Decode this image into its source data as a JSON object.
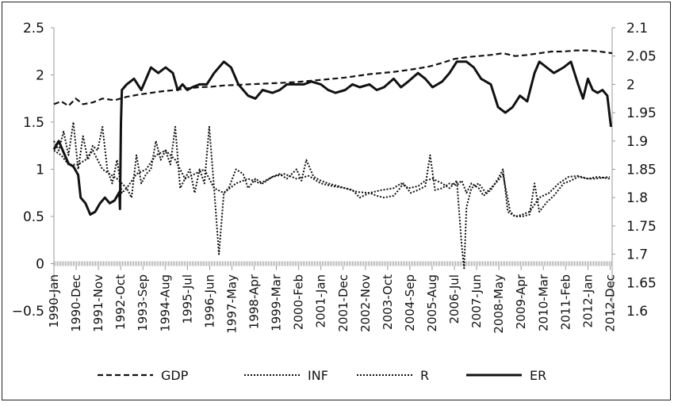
{
  "chart_data": {
    "type": "line",
    "title": "",
    "xlabel": "",
    "ylabel": "",
    "y_left": {
      "min": -0.5,
      "max": 2.5,
      "ticks": [
        -0.5,
        0,
        0.5,
        1,
        1.5,
        2,
        2.5
      ],
      "tick_labels": [
        "−0.5",
        "0",
        "0.5",
        "1",
        "1.5",
        "2",
        "2.5"
      ]
    },
    "y_right": {
      "min": 1.6,
      "max": 2.1,
      "ticks": [
        1.6,
        1.65,
        1.7,
        1.75,
        1.8,
        1.85,
        1.9,
        1.95,
        2,
        2.05,
        2.1
      ],
      "tick_labels": [
        "1.6",
        "1.65",
        "1.7",
        "1.75",
        "1.8",
        "1.85",
        "1.9",
        "1.95",
        "2",
        "2.05",
        "2.1"
      ]
    },
    "x_range": [
      1990.0,
      2013.0
    ],
    "categories": [
      "1990-Jan",
      "1990-Dec",
      "1991-Nov",
      "1992-Oct",
      "1993-Sep",
      "1994-Aug",
      "1995-Jul",
      "1996-Jun",
      "1997-May",
      "1998-Apr",
      "1999-Mar",
      "2000-Feb",
      "2001-Jan",
      "2001-Dec",
      "2002-Nov",
      "2003-Oct",
      "2004-Sep",
      "2005-Aug",
      "2006-Jul",
      "2007-Jun",
      "2008-May",
      "2009-Apr",
      "2010-Mar",
      "2011-Feb",
      "2012-Jan",
      "2012-Dec"
    ],
    "category_x": [
      1990.0,
      1990.917,
      1991.833,
      1992.75,
      1993.667,
      1994.583,
      1995.5,
      1996.417,
      1997.333,
      1998.25,
      1999.167,
      2000.083,
      2001.0,
      2001.917,
      2002.833,
      2003.75,
      2004.667,
      2005.583,
      2006.5,
      2007.417,
      2008.333,
      2009.25,
      2010.167,
      2011.083,
      2012.0,
      2012.917
    ],
    "legend_position": "bottom",
    "series": [
      {
        "name": "GDP",
        "axis": "right",
        "style": "dashed",
        "x": [
          1990.0,
          1990.3,
          1990.6,
          1990.9,
          1991.2,
          1991.6,
          1992.0,
          1992.5,
          1993.0,
          1993.5,
          1994.0,
          1994.5,
          1995.0,
          1995.5,
          1996.0,
          1996.5,
          1997.0,
          1997.5,
          1998.0,
          1998.5,
          1999.0,
          1999.5,
          2000.0,
          2000.5,
          2001.0,
          2001.5,
          2002.0,
          2002.5,
          2003.0,
          2003.5,
          2004.0,
          2004.5,
          2005.0,
          2005.5,
          2006.0,
          2006.5,
          2007.0,
          2007.5,
          2008.0,
          2008.5,
          2009.0,
          2009.5,
          2010.0,
          2010.5,
          2011.0,
          2011.5,
          2012.0,
          2012.5,
          2013.0
        ],
        "values": [
          1.965,
          1.97,
          1.962,
          1.975,
          1.965,
          1.968,
          1.975,
          1.972,
          1.978,
          1.982,
          1.985,
          1.988,
          1.99,
          1.993,
          1.995,
          1.996,
          1.998,
          1.999,
          2.0,
          2.001,
          2.002,
          2.003,
          2.004,
          2.006,
          2.008,
          2.01,
          2.012,
          2.015,
          2.018,
          2.02,
          2.022,
          2.025,
          2.028,
          2.032,
          2.038,
          2.045,
          2.048,
          2.05,
          2.052,
          2.055,
          2.05,
          2.052,
          2.055,
          2.058,
          2.058,
          2.06,
          2.06,
          2.058,
          2.055
        ]
      },
      {
        "name": "INF",
        "axis": "left",
        "style": "dotted",
        "x": [
          1990.0,
          1990.2,
          1990.4,
          1990.6,
          1990.8,
          1991.0,
          1991.2,
          1991.4,
          1991.6,
          1991.8,
          1992.0,
          1992.2,
          1992.4,
          1992.6,
          1992.8,
          1993.0,
          1993.2,
          1993.4,
          1993.6,
          1993.8,
          1994.0,
          1994.2,
          1994.4,
          1994.6,
          1994.8,
          1995.0,
          1995.2,
          1995.4,
          1995.6,
          1995.8,
          1996.0,
          1996.2,
          1996.4,
          1996.6,
          1996.8,
          1997.0,
          1997.2,
          1997.5,
          1997.8,
          1998.0,
          1998.3,
          1998.6,
          1999.0,
          1999.3,
          1999.6,
          2000.0,
          2000.2,
          2000.4,
          2000.7,
          2001.0,
          2001.3,
          2001.6,
          2002.0,
          2002.3,
          2002.6,
          2003.0,
          2003.3,
          2003.6,
          2004.0,
          2004.2,
          2004.4,
          2004.7,
          2005.0,
          2005.3,
          2005.5,
          2005.7,
          2006.0,
          2006.3,
          2006.6,
          2006.8,
          2007.0,
          2007.2,
          2007.5,
          2007.7,
          2008.0,
          2008.3,
          2008.5,
          2008.7,
          2009.0,
          2009.3,
          2009.6,
          2009.8,
          2010.0,
          2010.3,
          2010.6,
          2011.0,
          2011.3,
          2011.6,
          2012.0,
          2012.3,
          2012.6,
          2012.9
        ],
        "values": [
          1.3,
          1.2,
          1.4,
          1.15,
          1.5,
          1.0,
          1.35,
          1.1,
          1.25,
          1.2,
          1.45,
          1.0,
          0.85,
          1.1,
          0.75,
          0.8,
          0.7,
          1.15,
          0.85,
          0.95,
          1.0,
          1.3,
          1.1,
          1.2,
          1.05,
          1.45,
          0.8,
          0.9,
          1.0,
          0.75,
          1.0,
          0.85,
          1.45,
          0.8,
          0.1,
          0.75,
          0.8,
          1.0,
          0.95,
          0.8,
          0.9,
          0.85,
          0.92,
          0.95,
          0.9,
          1.0,
          0.88,
          1.1,
          0.92,
          0.88,
          0.85,
          0.83,
          0.8,
          0.78,
          0.7,
          0.75,
          0.72,
          0.7,
          0.72,
          0.78,
          0.85,
          0.75,
          0.78,
          0.82,
          1.15,
          0.78,
          0.8,
          0.85,
          0.83,
          0.88,
          0.75,
          0.85,
          0.8,
          0.72,
          0.78,
          0.9,
          1.0,
          0.55,
          0.5,
          0.5,
          0.52,
          0.85,
          0.55,
          0.65,
          0.72,
          0.85,
          0.88,
          0.92,
          0.9,
          0.9,
          0.91,
          0.92
        ]
      },
      {
        "name": "R",
        "axis": "left",
        "style": "dotted",
        "x": [
          1990.0,
          1990.3,
          1990.6,
          1991.0,
          1991.3,
          1991.6,
          1992.0,
          1992.3,
          1992.6,
          1993.0,
          1993.4,
          1993.8,
          1994.2,
          1994.6,
          1995.0,
          1995.4,
          1995.8,
          1996.2,
          1996.6,
          1997.0,
          1997.5,
          1998.0,
          1998.5,
          1999.0,
          1999.5,
          2000.0,
          2000.5,
          2001.0,
          2001.5,
          2002.0,
          2002.5,
          2003.0,
          2003.5,
          2004.0,
          2004.3,
          2004.6,
          2005.0,
          2005.3,
          2005.6,
          2006.0,
          2006.3,
          2006.6,
          2006.8,
          2006.9,
          2007.0,
          2007.2,
          2007.5,
          2007.8,
          2008.0,
          2008.3,
          2008.5,
          2008.8,
          2009.0,
          2009.3,
          2009.6,
          2010.0,
          2010.4,
          2010.8,
          2011.2,
          2011.6,
          2012.0,
          2012.4,
          2012.9
        ],
        "values": [
          1.2,
          1.15,
          1.05,
          1.05,
          1.1,
          1.2,
          1.0,
          0.95,
          0.9,
          0.8,
          0.95,
          1.0,
          1.15,
          1.2,
          1.1,
          0.9,
          0.95,
          1.0,
          0.8,
          0.75,
          0.85,
          0.9,
          0.85,
          0.92,
          0.95,
          0.9,
          0.93,
          0.85,
          0.82,
          0.8,
          0.76,
          0.75,
          0.78,
          0.8,
          0.85,
          0.8,
          0.82,
          0.88,
          0.9,
          0.85,
          0.8,
          0.88,
          0.2,
          -0.05,
          0.6,
          0.8,
          0.85,
          0.75,
          0.8,
          0.88,
          0.95,
          0.55,
          0.5,
          0.52,
          0.55,
          0.7,
          0.75,
          0.85,
          0.92,
          0.93,
          0.9,
          0.92,
          0.9
        ]
      },
      {
        "name": "ER",
        "axis": "right",
        "style": "solid",
        "x": [
          1990.0,
          1990.2,
          1990.4,
          1990.6,
          1990.8,
          1991.0,
          1991.1,
          1991.3,
          1991.5,
          1991.7,
          1991.9,
          1992.1,
          1992.3,
          1992.5,
          1992.7,
          1992.72,
          1992.76,
          1992.8,
          1993.0,
          1993.3,
          1993.6,
          1994.0,
          1994.3,
          1994.6,
          1994.9,
          1995.1,
          1995.3,
          1995.5,
          1995.7,
          1996.0,
          1996.3,
          1996.6,
          1997.0,
          1997.3,
          1997.6,
          1998.0,
          1998.3,
          1998.6,
          1999.0,
          1999.3,
          1999.6,
          2000.0,
          2000.3,
          2000.6,
          2001.0,
          2001.3,
          2001.6,
          2002.0,
          2002.3,
          2002.6,
          2003.0,
          2003.3,
          2003.6,
          2004.0,
          2004.3,
          2004.6,
          2005.0,
          2005.3,
          2005.6,
          2006.0,
          2006.3,
          2006.6,
          2007.0,
          2007.3,
          2007.6,
          2008.0,
          2008.3,
          2008.6,
          2008.9,
          2009.2,
          2009.5,
          2009.8,
          2010.0,
          2010.3,
          2010.6,
          2011.0,
          2011.3,
          2011.6,
          2011.8,
          2012.0,
          2012.2,
          2012.4,
          2012.6,
          2012.8,
          2012.95
        ],
        "values": [
          1.885,
          1.9,
          1.88,
          1.86,
          1.855,
          1.84,
          1.8,
          1.79,
          1.77,
          1.775,
          1.79,
          1.8,
          1.79,
          1.795,
          1.81,
          1.78,
          1.93,
          1.99,
          2.0,
          2.01,
          1.99,
          2.03,
          2.02,
          2.03,
          2.02,
          1.99,
          2.0,
          1.99,
          1.995,
          2.0,
          2.0,
          2.02,
          2.04,
          2.03,
          2.0,
          1.98,
          1.975,
          1.99,
          1.985,
          1.99,
          2.0,
          2.0,
          2.0,
          2.005,
          2.0,
          1.99,
          1.985,
          1.99,
          2.0,
          1.995,
          2.0,
          1.99,
          1.995,
          2.01,
          1.995,
          2.005,
          2.02,
          2.01,
          1.995,
          2.005,
          2.02,
          2.04,
          2.04,
          2.03,
          2.01,
          2.0,
          1.96,
          1.95,
          1.96,
          1.98,
          1.97,
          2.02,
          2.04,
          2.03,
          2.02,
          2.03,
          2.04,
          2.0,
          1.975,
          2.01,
          1.99,
          1.985,
          1.99,
          1.98,
          1.925
        ]
      }
    ]
  }
}
